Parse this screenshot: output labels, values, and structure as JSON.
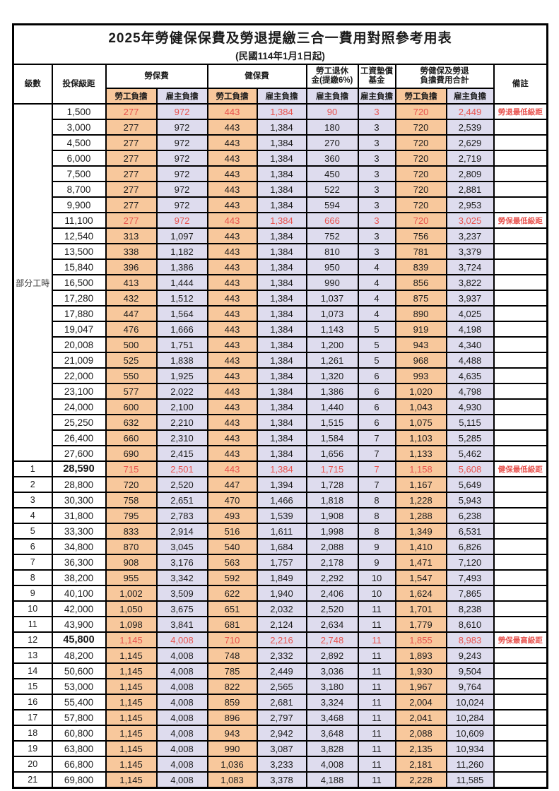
{
  "table": {
    "title": "2025年勞健保保費及勞退提繳三合一費用對照參考用表",
    "subtitle": "(民國114年1月1日起)",
    "colors": {
      "employee_bg": "#F8C89C",
      "employer_bg": "#DEDCEE",
      "highlight_red": "#E8544F",
      "border": "#000000"
    },
    "headers": {
      "level": "級數",
      "bracket": "投保級距",
      "labor": "勞保費",
      "health": "健保費",
      "pension_line1": "勞工退休",
      "pension_line2": "金(提繳6%)",
      "fund_line1": "工資墊償",
      "fund_line2": "基金",
      "total_line1": "勞健保及勞退",
      "total_line2": "負擔費用合計",
      "remark": "備註",
      "employee": "勞工負擔",
      "employer": "雇主負擔"
    },
    "part_time_label": "部分工時",
    "rows": [
      {
        "level": "",
        "bracket": "1,500",
        "v": [
          "277",
          "972",
          "443",
          "1,384",
          "90",
          "3",
          "720",
          "2,449"
        ],
        "remark": "勞退最低級距",
        "red": true,
        "bold": false
      },
      {
        "level": "",
        "bracket": "3,000",
        "v": [
          "277",
          "972",
          "443",
          "1,384",
          "180",
          "3",
          "720",
          "2,539"
        ],
        "remark": "",
        "red": false,
        "bold": false
      },
      {
        "level": "",
        "bracket": "4,500",
        "v": [
          "277",
          "972",
          "443",
          "1,384",
          "270",
          "3",
          "720",
          "2,629"
        ],
        "remark": "",
        "red": false,
        "bold": false
      },
      {
        "level": "",
        "bracket": "6,000",
        "v": [
          "277",
          "972",
          "443",
          "1,384",
          "360",
          "3",
          "720",
          "2,719"
        ],
        "remark": "",
        "red": false,
        "bold": false
      },
      {
        "level": "",
        "bracket": "7,500",
        "v": [
          "277",
          "972",
          "443",
          "1,384",
          "450",
          "3",
          "720",
          "2,809"
        ],
        "remark": "",
        "red": false,
        "bold": false
      },
      {
        "level": "",
        "bracket": "8,700",
        "v": [
          "277",
          "972",
          "443",
          "1,384",
          "522",
          "3",
          "720",
          "2,881"
        ],
        "remark": "",
        "red": false,
        "bold": false
      },
      {
        "level": "",
        "bracket": "9,900",
        "v": [
          "277",
          "972",
          "443",
          "1,384",
          "594",
          "3",
          "720",
          "2,953"
        ],
        "remark": "",
        "red": false,
        "bold": false
      },
      {
        "level": "",
        "bracket": "11,100",
        "v": [
          "277",
          "972",
          "443",
          "1,384",
          "666",
          "3",
          "720",
          "3,025"
        ],
        "remark": "勞保最低級距",
        "red": true,
        "bold": false
      },
      {
        "level": "",
        "bracket": "12,540",
        "v": [
          "313",
          "1,097",
          "443",
          "1,384",
          "752",
          "3",
          "756",
          "3,237"
        ],
        "remark": "",
        "red": false,
        "bold": false
      },
      {
        "level": "",
        "bracket": "13,500",
        "v": [
          "338",
          "1,182",
          "443",
          "1,384",
          "810",
          "3",
          "781",
          "3,379"
        ],
        "remark": "",
        "red": false,
        "bold": false
      },
      {
        "level": "",
        "bracket": "15,840",
        "v": [
          "396",
          "1,386",
          "443",
          "1,384",
          "950",
          "4",
          "839",
          "3,724"
        ],
        "remark": "",
        "red": false,
        "bold": false
      },
      {
        "level": "",
        "bracket": "16,500",
        "v": [
          "413",
          "1,444",
          "443",
          "1,384",
          "990",
          "4",
          "856",
          "3,822"
        ],
        "remark": "",
        "red": false,
        "bold": false
      },
      {
        "level": "",
        "bracket": "17,280",
        "v": [
          "432",
          "1,512",
          "443",
          "1,384",
          "1,037",
          "4",
          "875",
          "3,937"
        ],
        "remark": "",
        "red": false,
        "bold": false
      },
      {
        "level": "",
        "bracket": "17,880",
        "v": [
          "447",
          "1,564",
          "443",
          "1,384",
          "1,073",
          "4",
          "890",
          "4,025"
        ],
        "remark": "",
        "red": false,
        "bold": false
      },
      {
        "level": "",
        "bracket": "19,047",
        "v": [
          "476",
          "1,666",
          "443",
          "1,384",
          "1,143",
          "5",
          "919",
          "4,198"
        ],
        "remark": "",
        "red": false,
        "bold": false
      },
      {
        "level": "",
        "bracket": "20,008",
        "v": [
          "500",
          "1,751",
          "443",
          "1,384",
          "1,200",
          "5",
          "943",
          "4,340"
        ],
        "remark": "",
        "red": false,
        "bold": false
      },
      {
        "level": "",
        "bracket": "21,009",
        "v": [
          "525",
          "1,838",
          "443",
          "1,384",
          "1,261",
          "5",
          "968",
          "4,488"
        ],
        "remark": "",
        "red": false,
        "bold": false
      },
      {
        "level": "",
        "bracket": "22,000",
        "v": [
          "550",
          "1,925",
          "443",
          "1,384",
          "1,320",
          "6",
          "993",
          "4,635"
        ],
        "remark": "",
        "red": false,
        "bold": false
      },
      {
        "level": "",
        "bracket": "23,100",
        "v": [
          "577",
          "2,022",
          "443",
          "1,384",
          "1,386",
          "6",
          "1,020",
          "4,798"
        ],
        "remark": "",
        "red": false,
        "bold": false
      },
      {
        "level": "",
        "bracket": "24,000",
        "v": [
          "600",
          "2,100",
          "443",
          "1,384",
          "1,440",
          "6",
          "1,043",
          "4,930"
        ],
        "remark": "",
        "red": false,
        "bold": false
      },
      {
        "level": "",
        "bracket": "25,250",
        "v": [
          "632",
          "2,210",
          "443",
          "1,384",
          "1,515",
          "6",
          "1,075",
          "5,115"
        ],
        "remark": "",
        "red": false,
        "bold": false
      },
      {
        "level": "",
        "bracket": "26,400",
        "v": [
          "660",
          "2,310",
          "443",
          "1,384",
          "1,584",
          "7",
          "1,103",
          "5,285"
        ],
        "remark": "",
        "red": false,
        "bold": false
      },
      {
        "level": "",
        "bracket": "27,600",
        "v": [
          "690",
          "2,415",
          "443",
          "1,384",
          "1,656",
          "7",
          "1,133",
          "5,462"
        ],
        "remark": "",
        "red": false,
        "bold": false
      },
      {
        "level": "1",
        "bracket": "28,590",
        "v": [
          "715",
          "2,501",
          "443",
          "1,384",
          "1,715",
          "7",
          "1,158",
          "5,608"
        ],
        "remark": "健保最低級距",
        "red": true,
        "bold": true
      },
      {
        "level": "2",
        "bracket": "28,800",
        "v": [
          "720",
          "2,520",
          "447",
          "1,394",
          "1,728",
          "7",
          "1,167",
          "5,649"
        ],
        "remark": "",
        "red": false,
        "bold": false
      },
      {
        "level": "3",
        "bracket": "30,300",
        "v": [
          "758",
          "2,651",
          "470",
          "1,466",
          "1,818",
          "8",
          "1,228",
          "5,943"
        ],
        "remark": "",
        "red": false,
        "bold": false
      },
      {
        "level": "4",
        "bracket": "31,800",
        "v": [
          "795",
          "2,783",
          "493",
          "1,539",
          "1,908",
          "8",
          "1,288",
          "6,238"
        ],
        "remark": "",
        "red": false,
        "bold": false
      },
      {
        "level": "5",
        "bracket": "33,300",
        "v": [
          "833",
          "2,914",
          "516",
          "1,611",
          "1,998",
          "8",
          "1,349",
          "6,531"
        ],
        "remark": "",
        "red": false,
        "bold": false
      },
      {
        "level": "6",
        "bracket": "34,800",
        "v": [
          "870",
          "3,045",
          "540",
          "1,684",
          "2,088",
          "9",
          "1,410",
          "6,826"
        ],
        "remark": "",
        "red": false,
        "bold": false
      },
      {
        "level": "7",
        "bracket": "36,300",
        "v": [
          "908",
          "3,176",
          "563",
          "1,757",
          "2,178",
          "9",
          "1,471",
          "7,120"
        ],
        "remark": "",
        "red": false,
        "bold": false
      },
      {
        "level": "8",
        "bracket": "38,200",
        "v": [
          "955",
          "3,342",
          "592",
          "1,849",
          "2,292",
          "10",
          "1,547",
          "7,493"
        ],
        "remark": "",
        "red": false,
        "bold": false
      },
      {
        "level": "9",
        "bracket": "40,100",
        "v": [
          "1,002",
          "3,509",
          "622",
          "1,940",
          "2,406",
          "10",
          "1,624",
          "7,865"
        ],
        "remark": "",
        "red": false,
        "bold": false
      },
      {
        "level": "10",
        "bracket": "42,000",
        "v": [
          "1,050",
          "3,675",
          "651",
          "2,032",
          "2,520",
          "11",
          "1,701",
          "8,238"
        ],
        "remark": "",
        "red": false,
        "bold": false
      },
      {
        "level": "11",
        "bracket": "43,900",
        "v": [
          "1,098",
          "3,841",
          "681",
          "2,124",
          "2,634",
          "11",
          "1,779",
          "8,610"
        ],
        "remark": "",
        "red": false,
        "bold": false
      },
      {
        "level": "12",
        "bracket": "45,800",
        "v": [
          "1,145",
          "4,008",
          "710",
          "2,216",
          "2,748",
          "11",
          "1,855",
          "8,983"
        ],
        "remark": "勞保最高級距",
        "red": true,
        "bold": true
      },
      {
        "level": "13",
        "bracket": "48,200",
        "v": [
          "1,145",
          "4,008",
          "748",
          "2,332",
          "2,892",
          "11",
          "1,893",
          "9,243"
        ],
        "remark": "",
        "red": false,
        "bold": false
      },
      {
        "level": "14",
        "bracket": "50,600",
        "v": [
          "1,145",
          "4,008",
          "785",
          "2,449",
          "3,036",
          "11",
          "1,930",
          "9,504"
        ],
        "remark": "",
        "red": false,
        "bold": false
      },
      {
        "level": "15",
        "bracket": "53,000",
        "v": [
          "1,145",
          "4,008",
          "822",
          "2,565",
          "3,180",
          "11",
          "1,967",
          "9,764"
        ],
        "remark": "",
        "red": false,
        "bold": false
      },
      {
        "level": "16",
        "bracket": "55,400",
        "v": [
          "1,145",
          "4,008",
          "859",
          "2,681",
          "3,324",
          "11",
          "2,004",
          "10,024"
        ],
        "remark": "",
        "red": false,
        "bold": false
      },
      {
        "level": "17",
        "bracket": "57,800",
        "v": [
          "1,145",
          "4,008",
          "896",
          "2,797",
          "3,468",
          "11",
          "2,041",
          "10,284"
        ],
        "remark": "",
        "red": false,
        "bold": false
      },
      {
        "level": "18",
        "bracket": "60,800",
        "v": [
          "1,145",
          "4,008",
          "943",
          "2,942",
          "3,648",
          "11",
          "2,088",
          "10,609"
        ],
        "remark": "",
        "red": false,
        "bold": false
      },
      {
        "level": "19",
        "bracket": "63,800",
        "v": [
          "1,145",
          "4,008",
          "990",
          "3,087",
          "3,828",
          "11",
          "2,135",
          "10,934"
        ],
        "remark": "",
        "red": false,
        "bold": false
      },
      {
        "level": "20",
        "bracket": "66,800",
        "v": [
          "1,145",
          "4,008",
          "1,036",
          "3,233",
          "4,008",
          "11",
          "2,181",
          "11,260"
        ],
        "remark": "",
        "red": false,
        "bold": false
      },
      {
        "level": "21",
        "bracket": "69,800",
        "v": [
          "1,145",
          "4,008",
          "1,083",
          "3,378",
          "4,188",
          "11",
          "2,228",
          "11,585"
        ],
        "remark": "",
        "red": false,
        "bold": false
      }
    ]
  }
}
